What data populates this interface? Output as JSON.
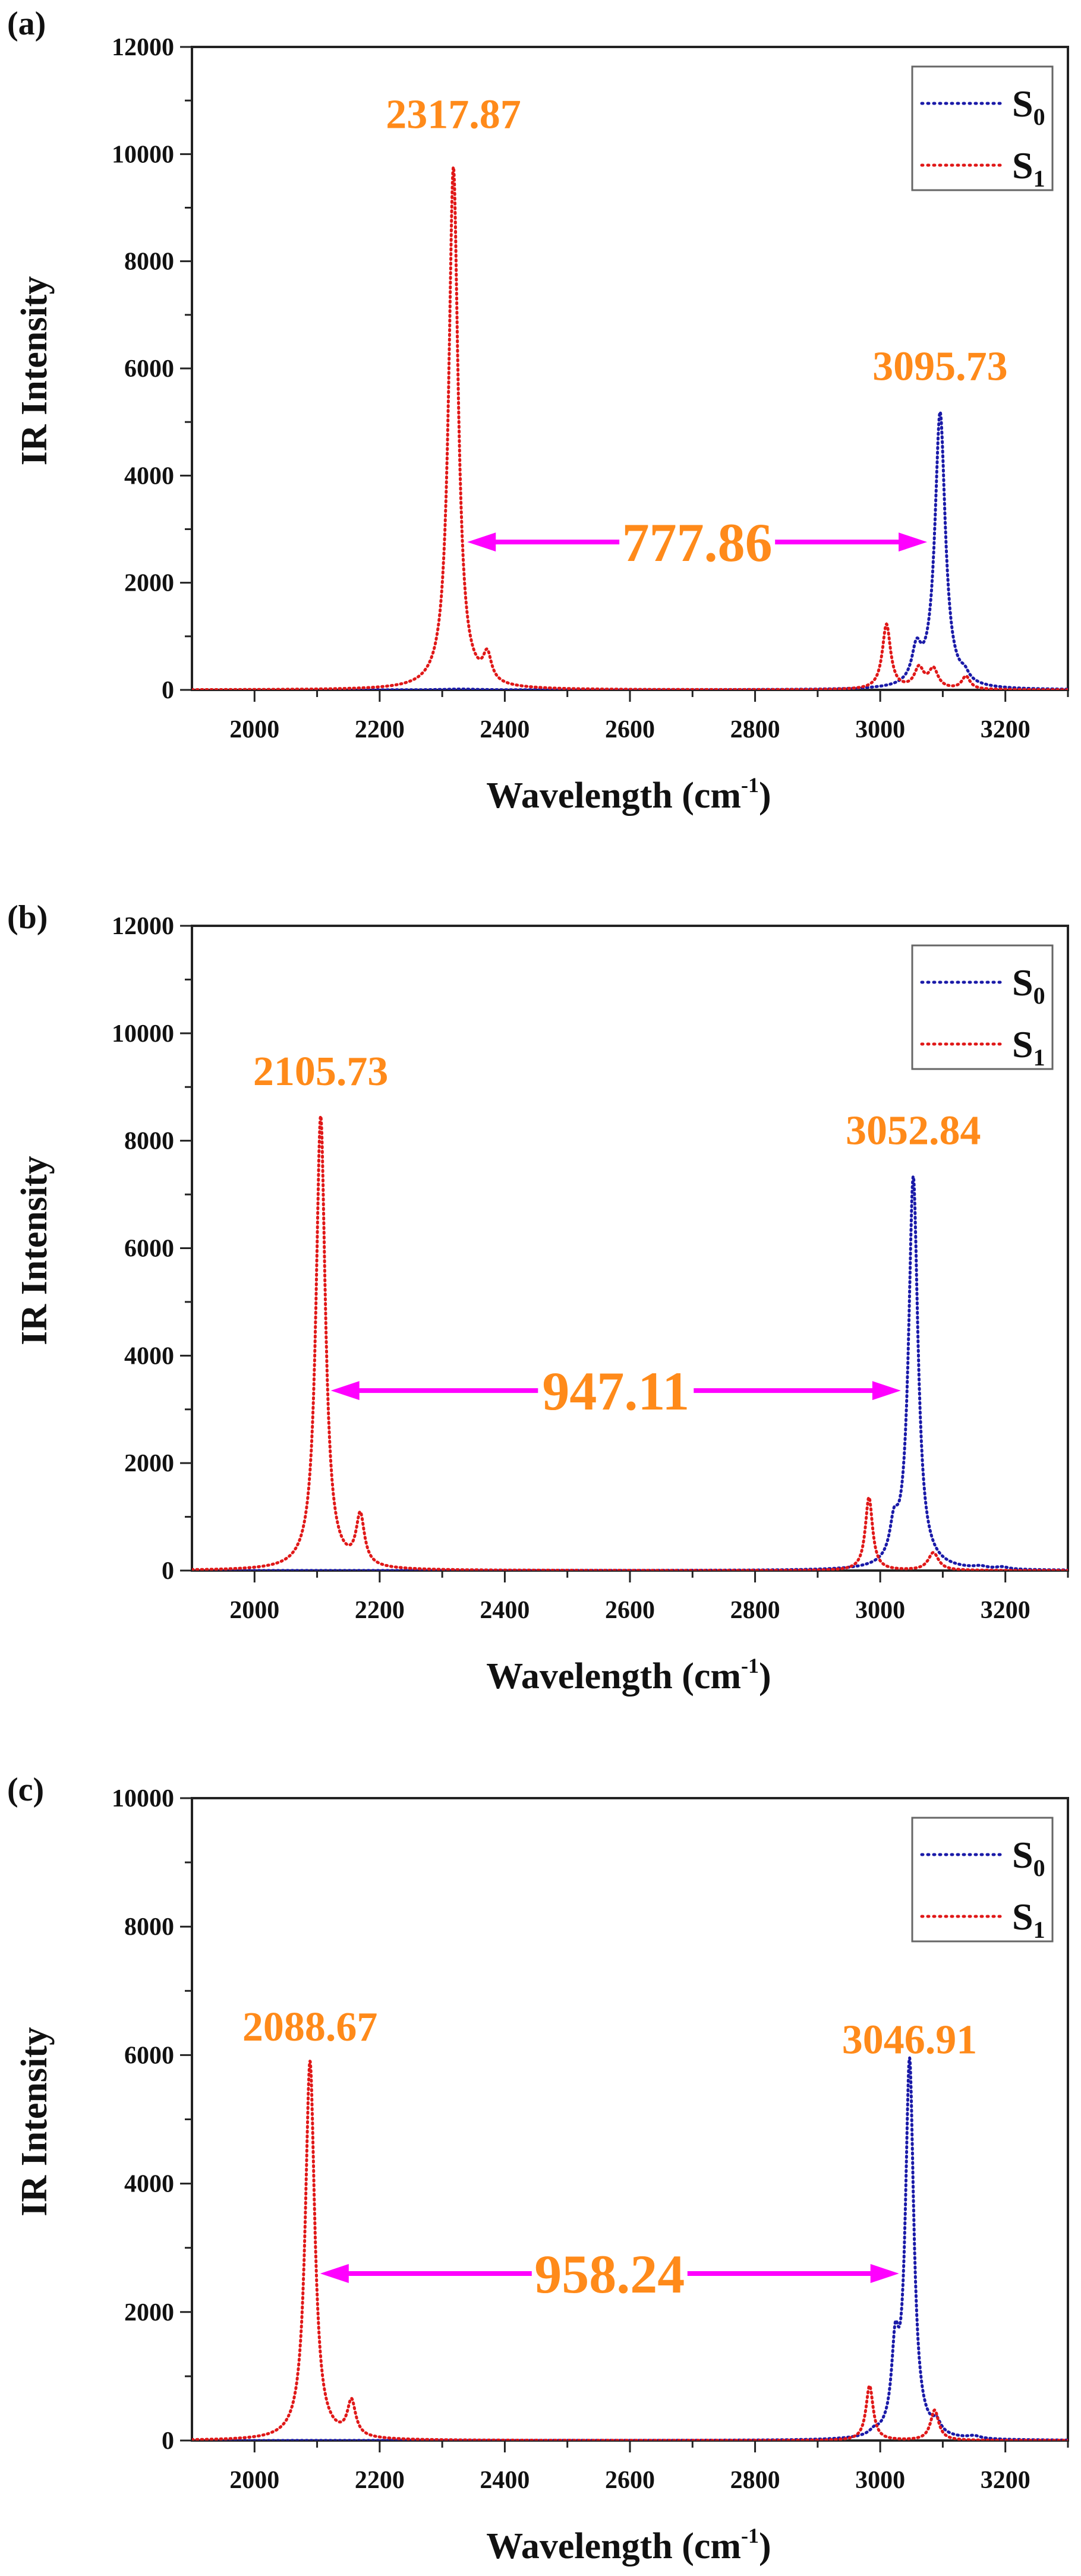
{
  "figure": {
    "colors": {
      "s0": "#1a1aa8",
      "s1": "#e01818",
      "annotation": "#ff8a1a",
      "arrow": "#ff00ff",
      "axis": "#222222"
    },
    "x_axis_title": "Wavelength (cm",
    "x_axis_title_sup": "-1",
    "x_axis_title_close": ")",
    "y_axis_title": "IR Intensity",
    "legend": [
      {
        "series": "S0",
        "label": "S",
        "sub": "0"
      },
      {
        "series": "S1",
        "label": "S",
        "sub": "1"
      }
    ]
  },
  "chart_data": [
    {
      "type": "line",
      "panel": "(a)",
      "title": "",
      "xlabel": "Wavelength (cm-1)",
      "ylabel": "IR Intensity",
      "xlim": [
        1900,
        3300
      ],
      "ylim": [
        0,
        12000
      ],
      "xticks": [
        2000,
        2200,
        2400,
        2600,
        2800,
        3000,
        3200
      ],
      "yticks": [
        0,
        2000,
        4000,
        6000,
        8000,
        10000,
        12000
      ],
      "grid": false,
      "legend_position": "upper right",
      "series": [
        {
          "name": "S0",
          "style": "dotted",
          "color": "#1a1aa8",
          "peaks": [
            [
              3095.73,
              5150,
              10
            ],
            [
              3058,
              620,
              9
            ],
            [
              3135,
              140,
              8
            ],
            [
              2330,
              15,
              30
            ]
          ]
        },
        {
          "name": "S1",
          "style": "dotted",
          "color": "#e01818",
          "peaks": [
            [
              2317.87,
              9750,
              9
            ],
            [
              2372,
              500,
              8
            ],
            [
              3010,
              1210,
              8
            ],
            [
              3062,
              380,
              9
            ],
            [
              3085,
              360,
              9
            ],
            [
              3137,
              240,
              8
            ]
          ]
        }
      ],
      "annotations": [
        {
          "text": "2317.87",
          "x": 2317.87,
          "y": 10750
        },
        {
          "text": "3095.73",
          "x": 3095.73,
          "y": 6050
        },
        {
          "text": "777.86",
          "type": "double-arrow",
          "x_from": 2340,
          "x_to": 3075,
          "y": 2760
        }
      ]
    },
    {
      "type": "line",
      "panel": "(b)",
      "title": "",
      "xlabel": "Wavelength (cm-1)",
      "ylabel": "IR Intensity",
      "xlim": [
        1900,
        3300
      ],
      "ylim": [
        0,
        12000
      ],
      "xticks": [
        2000,
        2200,
        2400,
        2600,
        2800,
        3000,
        3200
      ],
      "yticks": [
        0,
        2000,
        4000,
        6000,
        8000,
        10000,
        12000
      ],
      "grid": false,
      "legend_position": "upper right",
      "series": [
        {
          "name": "S0",
          "style": "dotted",
          "color": "#1a1aa8",
          "peaks": [
            [
              3052.84,
              7300,
              9
            ],
            [
              3022,
              600,
              8
            ],
            [
              3160,
              40,
              12
            ],
            [
              3195,
              40,
              12
            ]
          ]
        },
        {
          "name": "S1",
          "style": "dotted",
          "color": "#e01818",
          "peaks": [
            [
              2105.73,
              8450,
              9
            ],
            [
              2169,
              930,
              8
            ],
            [
              2982,
              1360,
              7
            ],
            [
              3085,
              330,
              10
            ]
          ]
        }
      ],
      "annotations": [
        {
          "text": "2105.73",
          "x": 2105.73,
          "y": 9300
        },
        {
          "text": "3052.84",
          "x": 3052.84,
          "y": 8200
        },
        {
          "text": "947.11",
          "type": "double-arrow",
          "x_from": 2122,
          "x_to": 3033,
          "y": 3350
        }
      ]
    },
    {
      "type": "line",
      "panel": "(c)",
      "title": "",
      "xlabel": "Wavelength (cm-1)",
      "ylabel": "IR Intensity",
      "xlim": [
        1900,
        3300
      ],
      "ylim": [
        0,
        10000
      ],
      "xticks": [
        2000,
        2200,
        2400,
        2600,
        2800,
        3000,
        3200
      ],
      "yticks": [
        0,
        2000,
        4000,
        6000,
        8000,
        10000
      ],
      "grid": false,
      "legend_position": "upper right",
      "series": [
        {
          "name": "S0",
          "style": "dotted",
          "color": "#1a1aa8",
          "peaks": [
            [
              3046.91,
              5850,
              8
            ],
            [
              3024,
              1200,
              7
            ],
            [
              3090,
              170,
              8
            ],
            [
              2990,
              60,
              8
            ],
            [
              3150,
              40,
              12
            ]
          ]
        },
        {
          "name": "S1",
          "style": "dotted",
          "color": "#e01818",
          "peaks": [
            [
              2088.67,
              5900,
              9
            ],
            [
              2155,
              550,
              8
            ],
            [
              2983,
              850,
              7
            ],
            [
              3087,
              470,
              8
            ]
          ]
        }
      ],
      "annotations": [
        {
          "text": "2088.67",
          "x": 2088.67,
          "y": 6450
        },
        {
          "text": "3046.91",
          "x": 3046.91,
          "y": 6250
        },
        {
          "text": "958.24",
          "type": "double-arrow",
          "x_from": 2105,
          "x_to": 3030,
          "y": 2600
        }
      ]
    }
  ]
}
